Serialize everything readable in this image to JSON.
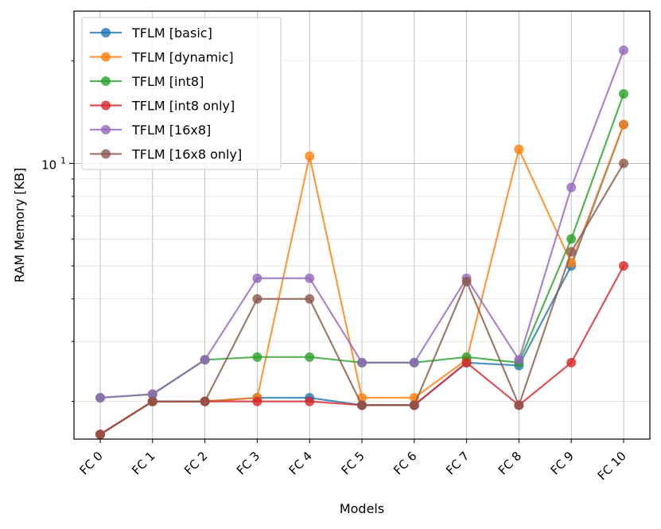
{
  "chart_data": {
    "type": "line",
    "title": "",
    "xlabel": "Models",
    "ylabel": "RAM Memory [KB]",
    "yscale": "log",
    "ylim": [
      1.55,
      28
    ],
    "ytick_major_label": {
      "base": "10",
      "exp": "1"
    },
    "grid": true,
    "legend_position": "top-left",
    "categories": [
      "FC 0",
      "FC 1",
      "FC 2",
      "FC 3",
      "FC 4",
      "FC 5",
      "FC 6",
      "FC 7",
      "FC 8",
      "FC 9",
      "FC 10"
    ],
    "series": [
      {
        "name": "TFLM [basic]",
        "color": "#1f77b4",
        "values": [
          1.6,
          2.0,
          2.0,
          2.05,
          2.05,
          1.95,
          1.95,
          2.6,
          2.55,
          5.0,
          13.0
        ]
      },
      {
        "name": "TFLM [dynamic]",
        "color": "#ff7f0e",
        "values": [
          1.6,
          2.0,
          2.0,
          2.05,
          10.5,
          2.05,
          2.05,
          2.65,
          11.0,
          5.1,
          13.0
        ]
      },
      {
        "name": "TFLM [int8]",
        "color": "#2ca02c",
        "values": [
          2.05,
          2.1,
          2.65,
          2.7,
          2.7,
          2.6,
          2.6,
          2.7,
          2.6,
          6.0,
          16.0
        ]
      },
      {
        "name": "TFLM [int8 only]",
        "color": "#d62728",
        "values": [
          1.6,
          2.0,
          2.0,
          2.0,
          2.0,
          1.95,
          1.95,
          2.6,
          1.95,
          2.6,
          5.0
        ]
      },
      {
        "name": "TFLM [16x8]",
        "color": "#9467bd",
        "values": [
          2.05,
          2.1,
          2.65,
          4.6,
          4.6,
          2.6,
          2.6,
          4.6,
          2.65,
          8.5,
          21.5
        ]
      },
      {
        "name": "TFLM [16x8 only]",
        "color": "#8c564b",
        "values": [
          1.6,
          2.0,
          2.0,
          4.0,
          4.0,
          1.95,
          1.95,
          4.5,
          1.95,
          5.5,
          10.0
        ]
      }
    ]
  }
}
